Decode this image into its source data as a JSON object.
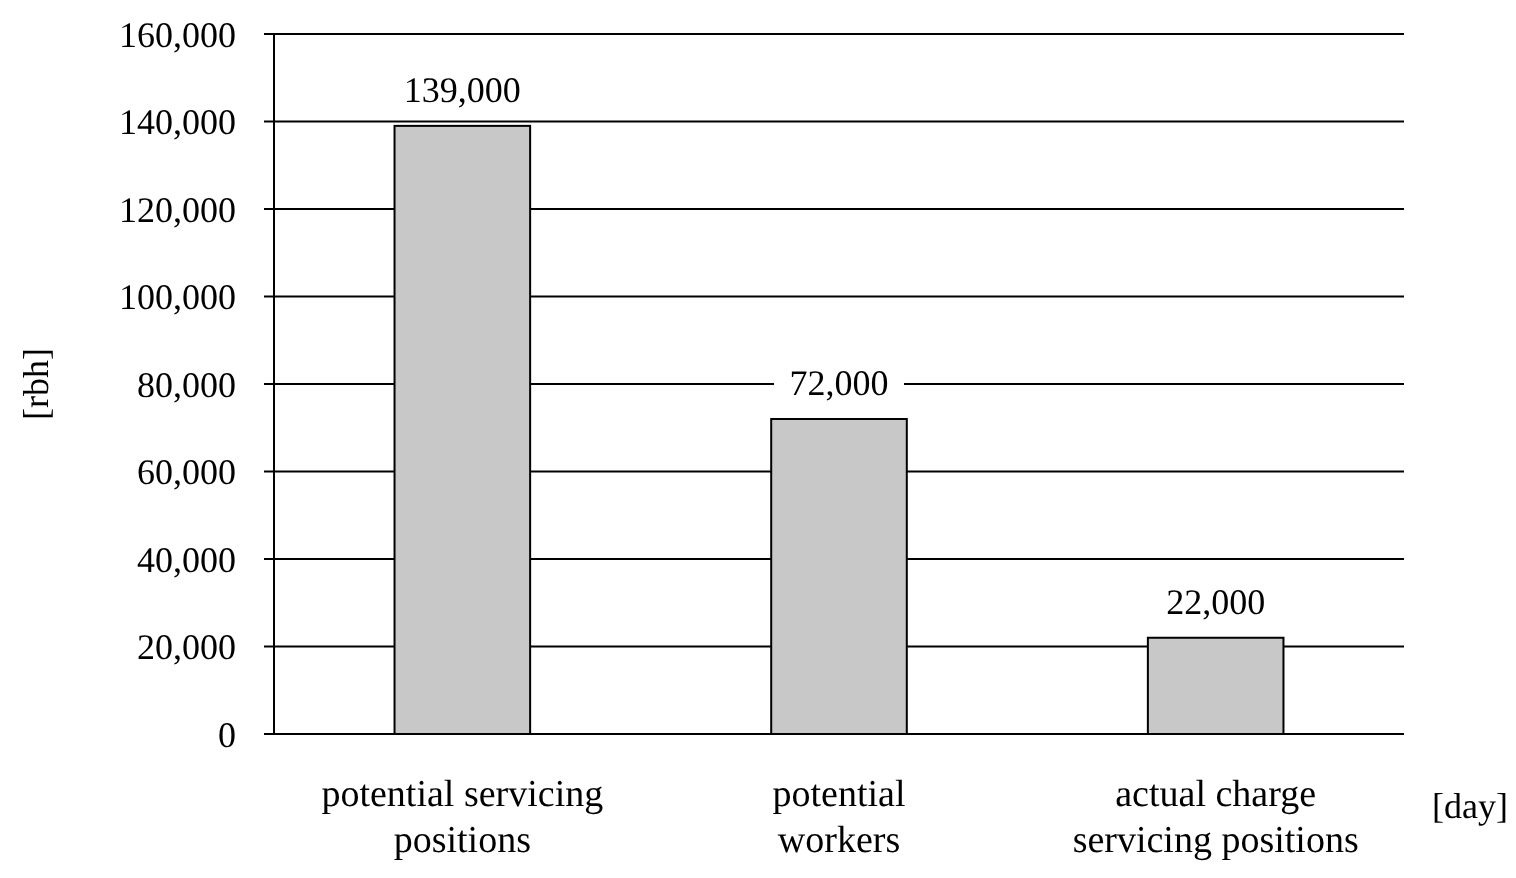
{
  "chart_data": {
    "type": "bar",
    "categories": [
      "potential servicing\npositions",
      "potential\nworkers",
      "actual charge\nservicing positions"
    ],
    "values": [
      139000,
      72000,
      22000
    ],
    "color": "#c8c8c8",
    "ylabel": "[rbh]",
    "xlabel": "[day]",
    "ylim": [
      0,
      160000
    ],
    "yticks": [
      {
        "value": 0,
        "label": "0"
      },
      {
        "value": 20000,
        "label": "20,000"
      },
      {
        "value": 40000,
        "label": "40,000"
      },
      {
        "value": 60000,
        "label": "60,000"
      },
      {
        "value": 80000,
        "label": "80,000"
      },
      {
        "value": 100000,
        "label": "100,000"
      },
      {
        "value": 120000,
        "label": "120,000"
      },
      {
        "value": 140000,
        "label": "140,000"
      },
      {
        "value": 160000,
        "label": "160,000"
      }
    ],
    "value_labels": [
      "139,000",
      "72,000",
      "22,000"
    ],
    "grid": "y"
  }
}
